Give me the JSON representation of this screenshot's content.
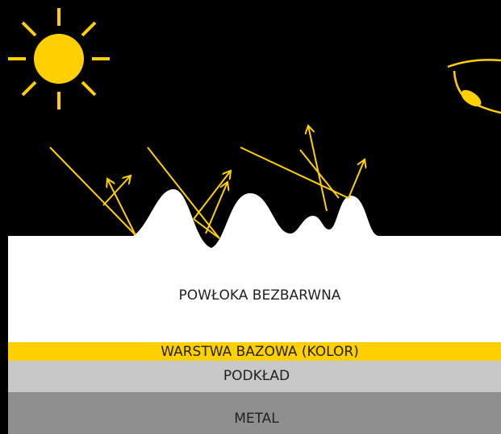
{
  "layers": {
    "clear_coat": "POWŁOKA BEZBARWNA",
    "base_coat": "WARSTWA BAZOWA (KOLOR)",
    "primer": "PODKŁAD",
    "metal": "METAL"
  }
}
